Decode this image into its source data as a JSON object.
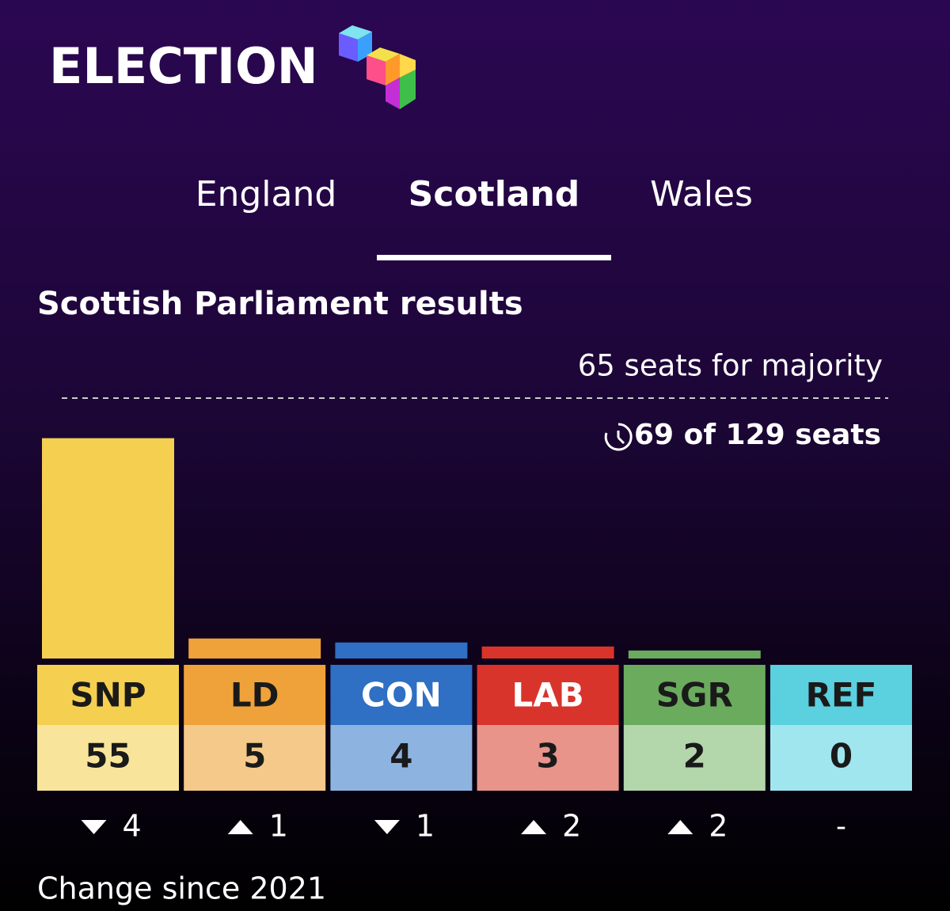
{
  "header": {
    "title": "ELECTION"
  },
  "tabs": [
    {
      "label": "England",
      "active": false
    },
    {
      "label": "Scotland",
      "active": true
    },
    {
      "label": "Wales",
      "active": false
    }
  ],
  "chart_data": {
    "type": "bar",
    "title": "Scottish Parliament results",
    "majority": {
      "value": 65,
      "label": "65 seats for majority"
    },
    "progress_label": "69 of 129 seats",
    "categories": [
      "SNP",
      "LD",
      "CON",
      "LAB",
      "SGR",
      "REF"
    ],
    "values": [
      55,
      5,
      4,
      3,
      2,
      0
    ],
    "colors": [
      "#f5cf4f",
      "#f0a23a",
      "#2f6fc4",
      "#d9342b",
      "#6aab5e",
      "#5bd0df"
    ],
    "light_colors": [
      "#f8e59b",
      "#f5c98a",
      "#8db4e0",
      "#e8948b",
      "#b3d6ab",
      "#9fe6ee"
    ],
    "name_colors": [
      "#1a1a1a",
      "#1a1a1a",
      "#ffffff",
      "#ffffff",
      "#1a1a1a",
      "#1a1a1a"
    ],
    "ylim": [
      0,
      65
    ],
    "change": [
      -4,
      1,
      -1,
      2,
      2,
      null
    ],
    "change_labels": [
      "4",
      "1",
      "1",
      "2",
      "2",
      "-"
    ],
    "change_title": "Change since 2021"
  }
}
